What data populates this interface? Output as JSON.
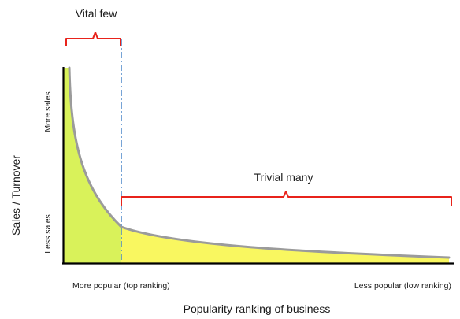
{
  "diagram": {
    "labels": {
      "vital_few": "Vital few",
      "trivial_many": "Trivial many",
      "y_axis": "Sales / Turnover",
      "y_high": "More sales",
      "y_low": "Less sales",
      "x_left": "More popular (top ranking)",
      "x_right": "Less popular (low ranking)",
      "x_axis": "Popularity ranking  of business"
    },
    "colors": {
      "head_fill": "#d9f25a",
      "tail_fill": "#f9f760",
      "curve": "#9b9b9b",
      "bracket": "#e8231b",
      "divider": "#4a86c8",
      "axis": "#000000"
    }
  }
}
